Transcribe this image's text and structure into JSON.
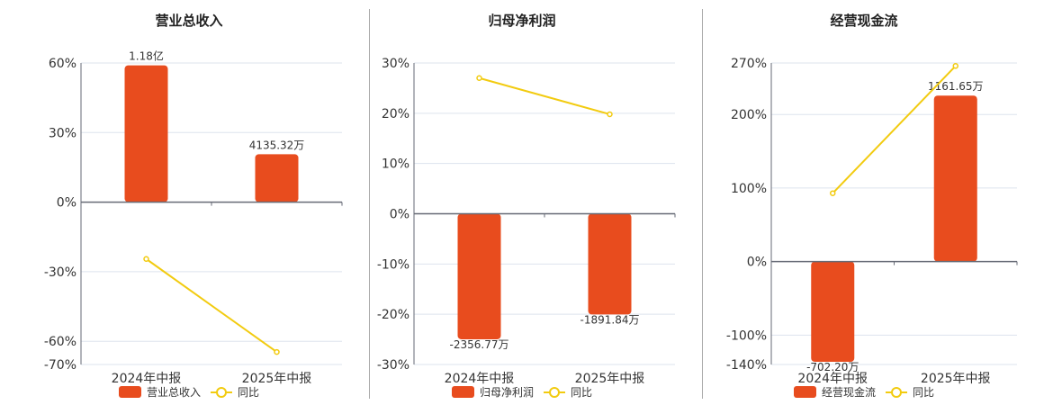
{
  "colors": {
    "bar": "#e84c1e",
    "line": "#f2cb10",
    "grid": "#dde3ee",
    "axis": "#666a75"
  },
  "chart_data": [
    {
      "type": "bar+line",
      "title": "营业总收入",
      "categories": [
        "2024年中报",
        "2025年中报"
      ],
      "bar_series": {
        "name": "营业总收入",
        "values": [
          11800,
          4135.32
        ],
        "unit": "万",
        "labels": [
          "1.18亿",
          "4135.32万"
        ],
        "max_aligned": 12000
      },
      "line_series": {
        "name": "同比",
        "values": [
          -24.5,
          -64.6
        ],
        "unit": "%"
      },
      "yaxis": {
        "range": [
          -70,
          60
        ],
        "ticks": [
          60,
          30,
          0,
          -30,
          -60,
          -70
        ],
        "tick_labels": [
          "60%",
          "30%",
          "0%",
          "-30%",
          "-60%",
          "-70%"
        ]
      },
      "legend": "bottom"
    },
    {
      "type": "bar+line",
      "title": "归母净利润",
      "categories": [
        "2024年中报",
        "2025年中报"
      ],
      "bar_series": {
        "name": "归母净利润",
        "values": [
          -2356.77,
          -1891.84
        ],
        "unit": "万",
        "labels": [
          "-2356.77万",
          "-1891.84万"
        ],
        "max_aligned": 2831
      },
      "line_series": {
        "name": "同比",
        "values": [
          27.0,
          19.8
        ],
        "unit": "%"
      },
      "yaxis": {
        "range": [
          -30,
          30
        ],
        "ticks": [
          30,
          20,
          10,
          0,
          -10,
          -20,
          -30
        ],
        "tick_labels": [
          "30%",
          "20%",
          "10%",
          "0%",
          "-10%",
          "-20%",
          "-30%"
        ]
      },
      "legend": "bottom"
    },
    {
      "type": "bar+line",
      "title": "经营现金流",
      "categories": [
        "2024年中报",
        "2025年中报"
      ],
      "bar_series": {
        "name": "经营现金流",
        "values": [
          -702.2,
          1161.65
        ],
        "unit": "万",
        "labels": [
          "-702.20万",
          "1161.65万"
        ],
        "max_aligned": 1390
      },
      "line_series": {
        "name": "同比",
        "values": [
          92.9,
          266.0
        ],
        "unit": "%"
      },
      "yaxis": {
        "range": [
          -140,
          270
        ],
        "ticks": [
          270,
          200,
          100,
          0,
          -100,
          -140
        ],
        "tick_labels": [
          "270%",
          "200%",
          "100%",
          "0%",
          "-100%",
          "-140%"
        ]
      },
      "legend": "bottom"
    }
  ]
}
